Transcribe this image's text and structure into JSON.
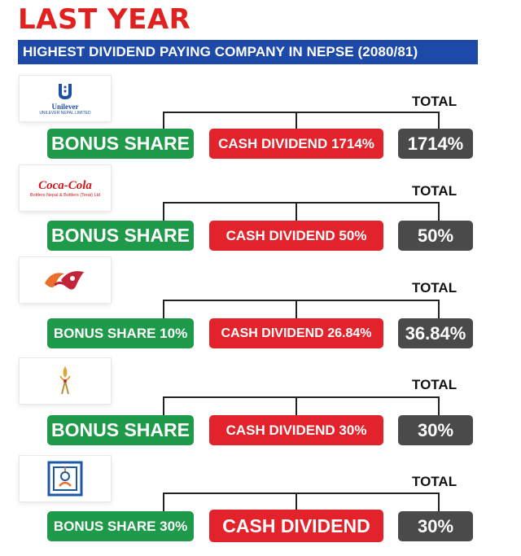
{
  "header": {
    "title": "LAST YEAR",
    "subtitle": "HIGHEST DIVIDEND PAYING COMPANY IN NEPSE (2080/81)"
  },
  "total_label": "TOTAL",
  "companies": [
    {
      "logo": "unilever-logo",
      "logo_text": "Unilever",
      "logo_subtext": "UNILEVER NEPAL LIMITED",
      "bonus": "BONUS SHARE",
      "cash": "CASH DIVIDEND 1714%",
      "total": "1714%"
    },
    {
      "logo": "coca-cola-logo",
      "logo_text": "Coca-Cola",
      "logo_subtext": "Bottlers Nepal & Bottlers (Terai) Ltd",
      "bonus": "BONUS SHARE",
      "cash": "CASH DIVIDEND 50%",
      "total": "50%"
    },
    {
      "logo": "company-3-logo",
      "bonus": "BONUS SHARE 10%",
      "cash": "CASH DIVIDEND 26.84%",
      "total": "36.84%"
    },
    {
      "logo": "company-4-logo",
      "bonus": "BONUS SHARE",
      "cash": "CASH DIVIDEND 30%",
      "total": "30%"
    },
    {
      "logo": "company-5-logo",
      "bonus": "BONUS SHARE 30%",
      "cash": "CASH DIVIDEND",
      "total": "30%"
    }
  ],
  "colors": {
    "title_red": "#e0211f",
    "subtitle_blue": "#1d4aa8",
    "bonus_green": "#1f9a4b",
    "cash_red": "#e3232b",
    "total_gray": "#4a4a4a"
  }
}
